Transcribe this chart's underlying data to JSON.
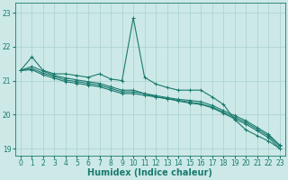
{
  "title": "",
  "xlabel": "Humidex (Indice chaleur)",
  "ylabel": "",
  "background_color": "#cce9e7",
  "grid_color": "#aed4d0",
  "line_color": "#1a7a6e",
  "xlim": [
    -0.5,
    23.5
  ],
  "ylim": [
    18.8,
    23.3
  ],
  "yticks": [
    19,
    20,
    21,
    22,
    23
  ],
  "xticks": [
    0,
    1,
    2,
    3,
    4,
    5,
    6,
    7,
    8,
    9,
    10,
    11,
    12,
    13,
    14,
    15,
    16,
    17,
    18,
    19,
    20,
    21,
    22,
    23
  ],
  "series": [
    [
      21.3,
      21.7,
      21.3,
      21.2,
      21.2,
      21.15,
      21.1,
      21.2,
      21.05,
      21.0,
      22.85,
      21.1,
      20.9,
      20.8,
      20.72,
      20.72,
      20.72,
      20.52,
      20.3,
      19.85,
      19.55,
      19.38,
      19.22,
      19.0
    ],
    [
      21.3,
      21.42,
      21.28,
      21.15,
      21.08,
      21.02,
      20.97,
      20.92,
      20.82,
      20.72,
      20.72,
      20.62,
      20.56,
      20.5,
      20.45,
      20.42,
      20.38,
      20.27,
      20.12,
      19.97,
      19.82,
      19.62,
      19.42,
      19.1
    ],
    [
      21.3,
      21.36,
      21.22,
      21.12,
      21.02,
      20.97,
      20.92,
      20.87,
      20.77,
      20.67,
      20.67,
      20.62,
      20.52,
      20.47,
      20.42,
      20.37,
      20.32,
      20.22,
      20.07,
      19.92,
      19.77,
      19.57,
      19.37,
      19.07
    ],
    [
      21.3,
      21.32,
      21.17,
      21.07,
      20.97,
      20.92,
      20.87,
      20.82,
      20.72,
      20.62,
      20.62,
      20.57,
      20.52,
      20.47,
      20.4,
      20.34,
      20.3,
      20.2,
      20.04,
      19.87,
      19.72,
      19.52,
      19.32,
      19.0
    ]
  ],
  "marker": "+",
  "markersize": 3,
  "linewidth": 0.8,
  "axis_fontsize": 6,
  "tick_fontsize": 5.5,
  "xlabel_fontsize": 7,
  "xlabel_fontweight": "bold"
}
